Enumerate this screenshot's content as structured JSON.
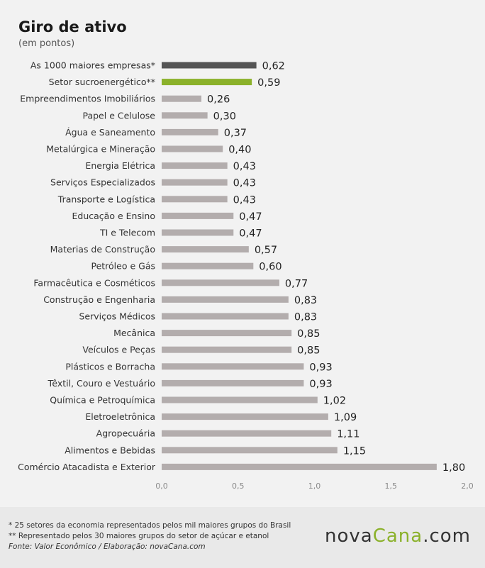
{
  "header": {
    "title": "Giro de ativo",
    "subtitle": "(em pontos)"
  },
  "colors": {
    "highlight_dark": "#555555",
    "highlight_green": "#8bb12a",
    "bar_default": "#b3adad",
    "background": "#f2f2f2"
  },
  "chart_data": {
    "type": "bar",
    "orientation": "horizontal",
    "title": "Giro de ativo",
    "subtitle": "(em pontos)",
    "xlim": [
      0,
      2.0
    ],
    "ticks": [
      "0,0",
      "0,5",
      "1,0",
      "1,5",
      "2,0"
    ],
    "categories": [
      "As 1000 maiores empresas*",
      "Setor sucroenergético**",
      "Empreendimentos Imobiliários",
      "Papel e Celulose",
      "Água e Saneamento",
      "Metalúrgica e Mineração",
      "Energia Elétrica",
      "Serviços Especializados",
      "Transporte e Logística",
      "Educação e Ensino",
      "TI e Telecom",
      "Materias de Construção",
      "Petróleo e Gás",
      "Farmacêutica e Cosméticos",
      "Construção e Engenharia",
      "Serviços Médicos",
      "Mecânica",
      "Veículos e Peças",
      "Plásticos e Borracha",
      "Têxtil, Couro e Vestuário",
      "Química e Petroquímica",
      "Eletroeletrônica",
      "Agropecuária",
      "Alimentos e Bebidas",
      "Comércio Atacadista e Exterior"
    ],
    "values": [
      0.62,
      0.59,
      0.26,
      0.3,
      0.37,
      0.4,
      0.43,
      0.43,
      0.43,
      0.47,
      0.47,
      0.57,
      0.6,
      0.77,
      0.83,
      0.83,
      0.85,
      0.85,
      0.93,
      0.93,
      1.02,
      1.09,
      1.11,
      1.15,
      1.8
    ],
    "value_labels": [
      "0,62",
      "0,59",
      "0,26",
      "0,30",
      "0,37",
      "0,40",
      "0,43",
      "0,43",
      "0,43",
      "0,47",
      "0,47",
      "0,57",
      "0,60",
      "0,77",
      "0,83",
      "0,83",
      "0,85",
      "0,85",
      "0,93",
      "0,93",
      "1,02",
      "1,09",
      "1,11",
      "1,15",
      "1,80"
    ],
    "bar_colors": [
      "#555555",
      "#8bb12a",
      "#b3adad",
      "#b3adad",
      "#b3adad",
      "#b3adad",
      "#b3adad",
      "#b3adad",
      "#b3adad",
      "#b3adad",
      "#b3adad",
      "#b3adad",
      "#b3adad",
      "#b3adad",
      "#b3adad",
      "#b3adad",
      "#b3adad",
      "#b3adad",
      "#b3adad",
      "#b3adad",
      "#b3adad",
      "#b3adad",
      "#b3adad",
      "#b3adad",
      "#b3adad"
    ],
    "grid": false,
    "legend": "none"
  },
  "footer": {
    "note1": "* 25 setores da economia representados pelos mil maiores grupos do Brasil",
    "note2": "** Representado pelos 30 maiores grupos do setor de açúcar e etanol",
    "source": "Fonte: Valor Econômico / Elaboração: novaCana.com",
    "logo_part1": "nova",
    "logo_part2": "Cana",
    "logo_part3": ".com"
  }
}
